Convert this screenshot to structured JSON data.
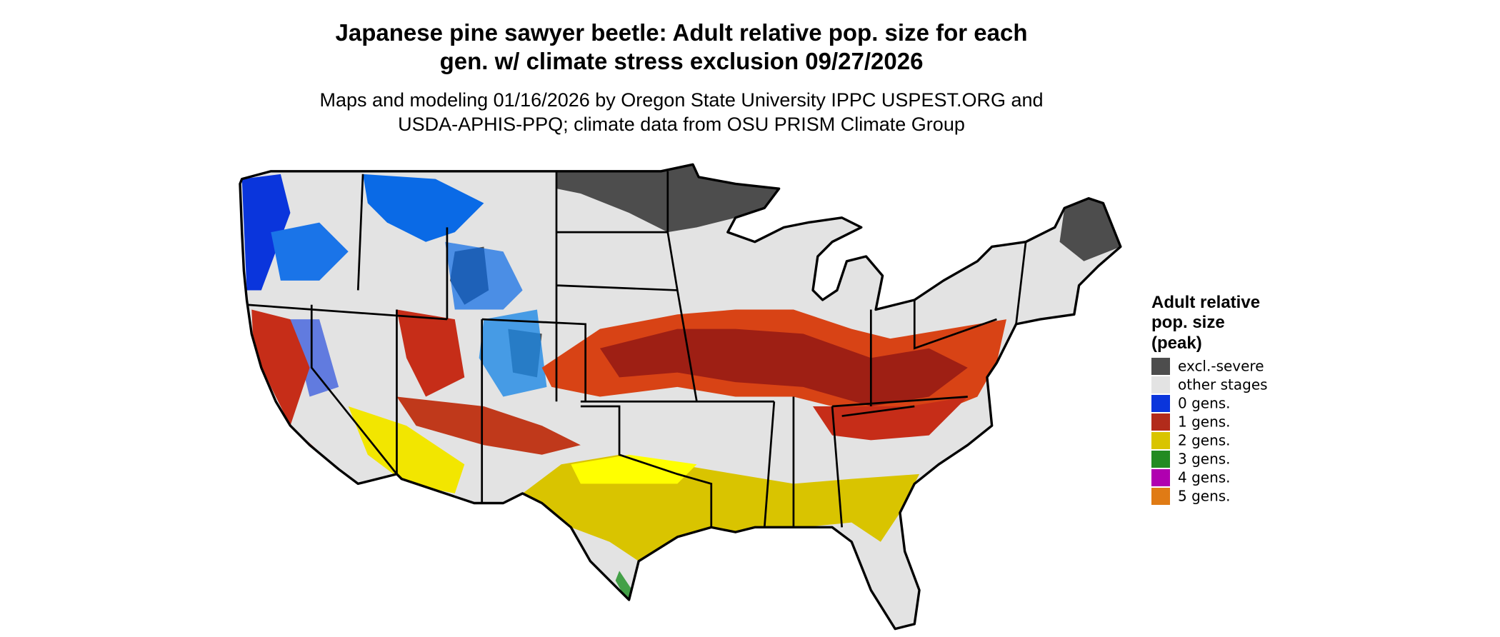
{
  "title": {
    "lines": [
      "Japanese pine sawyer beetle: Adult relative pop. size for each",
      "gen. w/ climate stress exclusion 09/27/2026"
    ]
  },
  "subtitle": {
    "lines": [
      "Maps and modeling 01/16/2026 by Oregon State University IPPC USPEST.ORG and",
      "USDA-APHIS-PPQ; climate data from OSU PRISM Climate Group"
    ]
  },
  "legend": {
    "title_lines": [
      "Adult relative",
      "pop. size",
      "(peak)"
    ],
    "items": [
      {
        "label": "excl.-severe",
        "color": "#4d4d4d"
      },
      {
        "label": "other stages",
        "color": "#e3e3e3"
      },
      {
        "label": "0 gens.",
        "color": "#0a35dc"
      },
      {
        "label": "1 gens.",
        "color": "#b22b1b"
      },
      {
        "label": "2 gens.",
        "color": "#d9c400"
      },
      {
        "label": "3 gens.",
        "color": "#228b22"
      },
      {
        "label": "4 gens.",
        "color": "#b000b0"
      },
      {
        "label": "5 gens.",
        "color": "#e07b15"
      }
    ]
  }
}
